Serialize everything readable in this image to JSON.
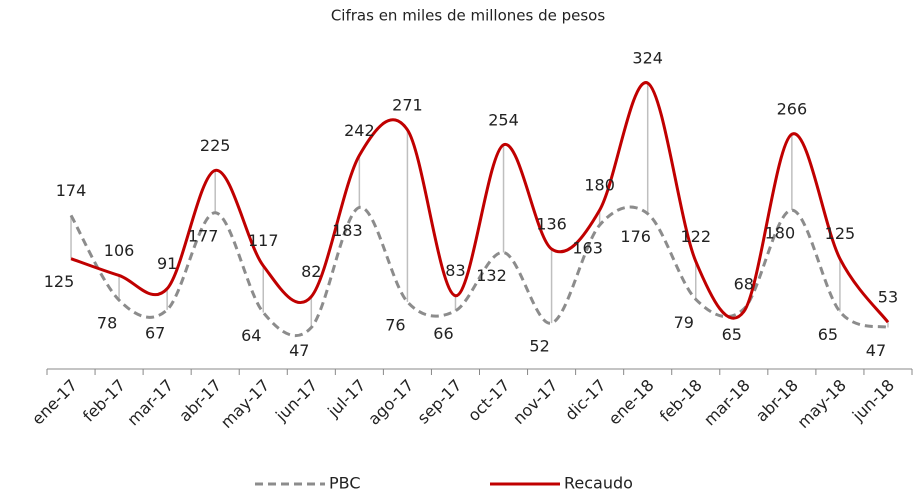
{
  "chart_data": {
    "type": "line",
    "title": "Cifras en miles de millones de pesos",
    "categories": [
      "ene-17",
      "feb-17",
      "mar-17",
      "abr-17",
      "may-17",
      "jun-17",
      "jul-17",
      "ago-17",
      "sep-17",
      "oct-17",
      "nov-17",
      "dic-17",
      "ene-18",
      "feb-18",
      "mar-18",
      "abr-18",
      "may-18",
      "jun-18"
    ],
    "series": [
      {
        "name": "PBC",
        "color": "#8c8c8c",
        "values": [
          174,
          78,
          67,
          177,
          64,
          47,
          183,
          76,
          66,
          132,
          52,
          163,
          176,
          79,
          68,
          180,
          65,
          47
        ]
      },
      {
        "name": "Recaudo",
        "color": "#c00000",
        "values": [
          125,
          106,
          91,
          225,
          117,
          82,
          242,
          271,
          83,
          254,
          136,
          180,
          324,
          122,
          65,
          266,
          125,
          53
        ]
      }
    ],
    "ylim": [
      0,
      375
    ],
    "legend": "bottom"
  }
}
